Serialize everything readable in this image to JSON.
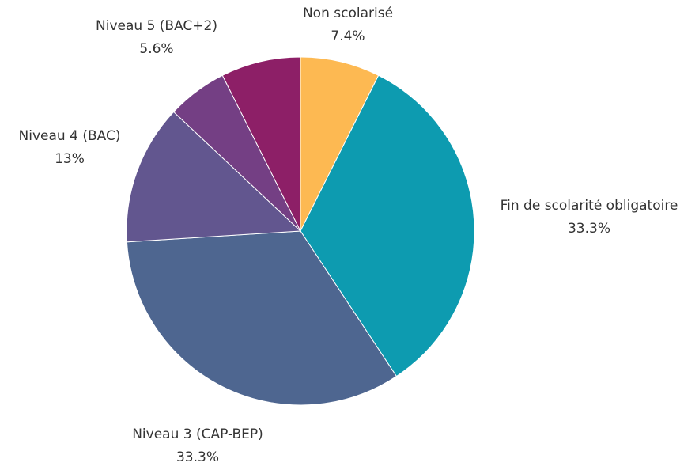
{
  "chart_data": {
    "type": "pie",
    "title": "",
    "start_angle_deg": 0,
    "direction": "clockwise",
    "slices": [
      {
        "label": "Non scolarisé",
        "value": 7.4,
        "value_label": "7.4%",
        "color": "#FDB952"
      },
      {
        "label": "Fin de scolarité obligatoire",
        "value": 33.3,
        "value_label": "33.3%",
        "color": "#0D9BB0"
      },
      {
        "label": "Niveau 3 (CAP-BEP)",
        "value": 33.3,
        "value_label": "33.3%",
        "color": "#4E6690"
      },
      {
        "label": "Niveau 4 (BAC)",
        "value": 13,
        "value_label": "13%",
        "color": "#62568F"
      },
      {
        "label": "Niveau 5 (BAC+2)",
        "value": 5.6,
        "value_label": "5.6%",
        "color": "#743F84"
      },
      {
        "label": "",
        "value": 7.4,
        "value_label": "",
        "color": "#8D1F67"
      }
    ]
  }
}
